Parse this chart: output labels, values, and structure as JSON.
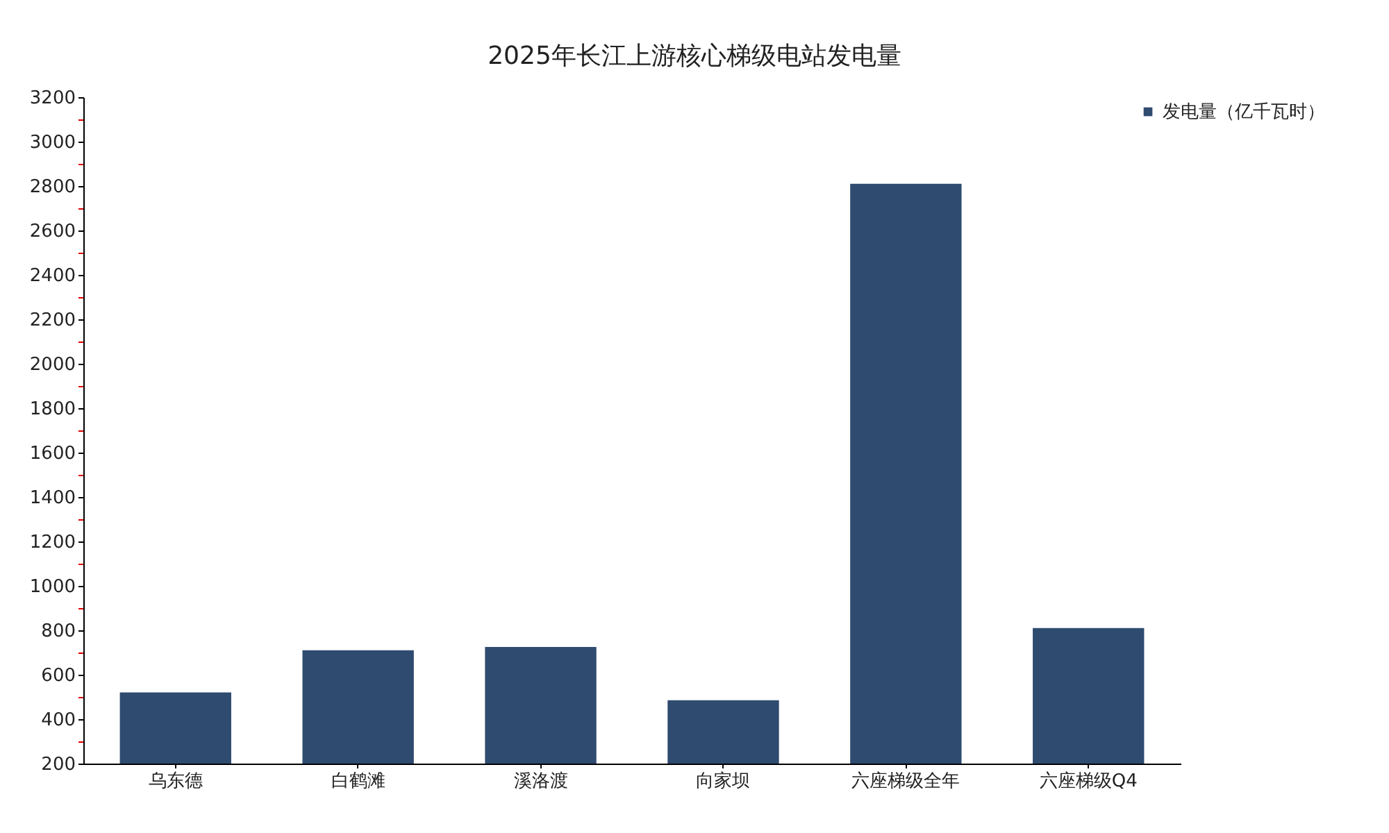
{
  "chart_data": {
    "type": "bar",
    "title": "2025年长江上游核心梯级电站发电量",
    "categories": [
      "乌东德",
      "白鹤滩",
      "溪洛渡",
      "向家坝",
      "六座梯级全年",
      "六座梯级Q4"
    ],
    "series": [
      {
        "name": "发电量（亿千瓦时）",
        "color": "#2f4b6f",
        "values": [
          520,
          710,
          725,
          485,
          2810,
          810
        ]
      }
    ],
    "ylim": [
      200,
      3200
    ],
    "yticks": [
      200,
      {
        "value": 300,
        "label": null
      },
      400,
      {
        "value": 500,
        "label": null
      },
      600,
      {
        "value": 700,
        "label": null
      },
      800,
      {
        "value": 900,
        "label": null
      },
      1000,
      {
        "value": 1100,
        "label": null
      },
      1200,
      {
        "value": 1300,
        "label": null
      },
      1400,
      {
        "value": 1500,
        "label": null
      },
      1600,
      {
        "value": 1700,
        "label": null
      },
      1800,
      {
        "value": 1900,
        "label": null
      },
      2000,
      {
        "value": 2100,
        "label": null
      },
      2200,
      {
        "value": 2300,
        "label": null
      },
      2400,
      {
        "value": 2500,
        "label": null
      },
      2600,
      {
        "value": 2700,
        "label": null
      },
      2800,
      {
        "value": 2900,
        "label": null
      },
      3000,
      {
        "value": 3100,
        "label": null
      },
      3200
    ],
    "legend": "top right"
  }
}
